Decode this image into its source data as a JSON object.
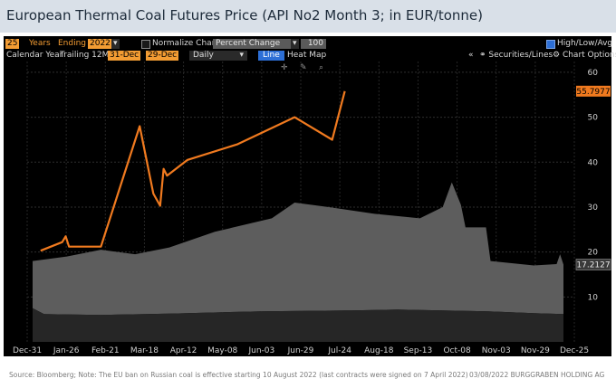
{
  "title": "European Thermal Coal Futures Price (API No2 Month 3; in EUR/tonne)",
  "toolbar": {
    "years_value": "25",
    "years_label": "Years",
    "ending_label": "Ending",
    "ending_value": "2022",
    "normalize_label": "Normalize Chart",
    "normalize_mode": "Percent Change",
    "normalize_base": "100",
    "hlavg_label": "High/Low/Avg",
    "calendar_year": "Calendar Year",
    "trailing": "Trailing 12M",
    "start_date": "31-Dec",
    "end_date": "29-Dec",
    "period": "Daily",
    "line_btn": "Line",
    "heatmap_btn": "Heat Map",
    "securities_btn": "Securities/Lines",
    "options_btn": "Chart Options",
    "collapse_glyph": "«"
  },
  "source_note": "Source: Bloomberg; Note: The EU ban on Russian coal is effective starting 10 August 2022 (last contracts were signed on 7 April 2022)",
  "footer_right": "03/08/2022  BURGGRABEN HOLDING AG",
  "colors": {
    "line": "#f07a1f",
    "band": "#5d5d5d",
    "band_low": "#262626",
    "accent": "#f39c33",
    "background": "#000000"
  },
  "chart_data": {
    "type": "line",
    "x_ticks": [
      "Dec-31",
      "Jan-26",
      "Feb-21",
      "Mar-18",
      "Apr-12",
      "May-08",
      "Jun-03",
      "Jun-29",
      "Jul-24",
      "Aug-18",
      "Sep-13",
      "Oct-08",
      "Nov-03",
      "Nov-29",
      "Dec-25"
    ],
    "y_ticks": [
      10,
      20,
      30,
      40,
      50,
      60
    ],
    "ylim": [
      0,
      62
    ],
    "grid": true,
    "series": [
      {
        "role": "current-year",
        "last_value_label": "55.7977",
        "points": [
          [
            0.35,
            20.3
          ],
          [
            1.3,
            22.2
          ],
          [
            1.45,
            23.5
          ],
          [
            1.6,
            21.2
          ],
          [
            2.0,
            21.2
          ],
          [
            3.0,
            21.2
          ],
          [
            4.7,
            48.0
          ],
          [
            5.3,
            33.0
          ],
          [
            5.6,
            30.3
          ],
          [
            5.75,
            38.5
          ],
          [
            5.9,
            37.0
          ],
          [
            6.8,
            40.5
          ],
          [
            9.0,
            44.0
          ],
          [
            11.5,
            50.0
          ],
          [
            13.15,
            45.0
          ],
          [
            13.7,
            55.8
          ]
        ]
      },
      {
        "role": "historical-average",
        "last_value_label": "17.2127",
        "points": [
          [
            0,
            18
          ],
          [
            1.5,
            19
          ],
          [
            3.0,
            20.5
          ],
          [
            4.5,
            19.5
          ],
          [
            6.0,
            21
          ],
          [
            8.0,
            24.5
          ],
          [
            10.5,
            27.5
          ],
          [
            11.5,
            31
          ],
          [
            13.0,
            30
          ],
          [
            15.0,
            28.5
          ],
          [
            17.0,
            27.5
          ],
          [
            18.0,
            30
          ],
          [
            18.4,
            35.5
          ],
          [
            18.8,
            30.5
          ],
          [
            19.0,
            25.5
          ],
          [
            19.9,
            25.5
          ],
          [
            20.1,
            18
          ],
          [
            22.0,
            17
          ],
          [
            23.0,
            17.3
          ],
          [
            23.15,
            19.5
          ],
          [
            23.3,
            17.2
          ]
        ]
      },
      {
        "role": "historical-low",
        "points": [
          [
            0,
            7.5
          ],
          [
            0.5,
            6.2
          ],
          [
            3.0,
            6.0
          ],
          [
            6.0,
            6.3
          ],
          [
            10.0,
            6.8
          ],
          [
            14.0,
            7.0
          ],
          [
            16.0,
            7.2
          ],
          [
            18.0,
            7.0
          ],
          [
            20.0,
            6.8
          ],
          [
            22.0,
            6.4
          ],
          [
            23.3,
            6.2
          ]
        ]
      }
    ]
  }
}
